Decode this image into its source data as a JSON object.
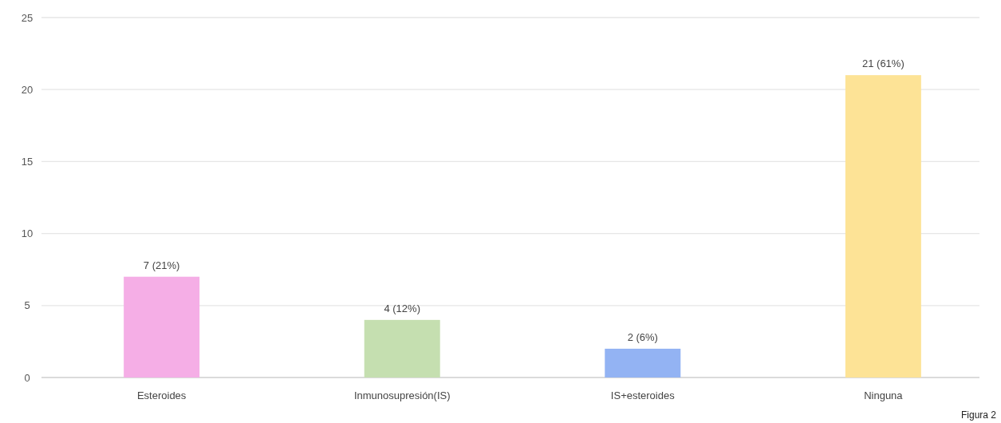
{
  "chart_data": {
    "type": "bar",
    "categories": [
      "Esteroides",
      "Inmunosupresión(IS)",
      "IS+esteroides",
      "Ninguna"
    ],
    "values": [
      7,
      4,
      2,
      21
    ],
    "colors": [
      "#f5aee6",
      "#c5dfb0",
      "#93b3f3",
      "#fde396"
    ],
    "value_labels": [
      "7 (21%)",
      "4 (12%)",
      "2 (6%)",
      "21 (61%)"
    ],
    "ylim": [
      0,
      25
    ],
    "yticks": [
      0,
      5,
      10,
      15,
      20,
      25
    ],
    "grid": "y",
    "annotations": [
      "Figura 2"
    ]
  }
}
